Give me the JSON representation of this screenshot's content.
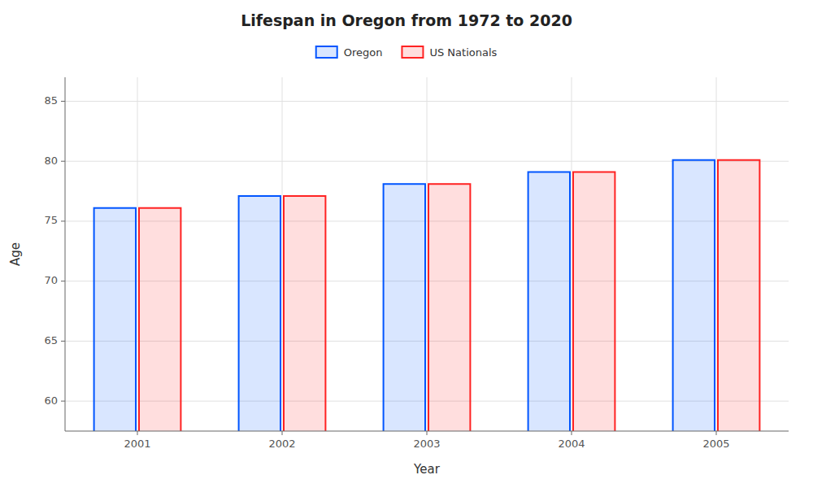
{
  "chart_data": {
    "type": "bar",
    "title": "Lifespan in Oregon from 1972 to 2020",
    "x_label": "Year",
    "y_label": "Age",
    "categories": [
      "2001",
      "2002",
      "2003",
      "2004",
      "2005"
    ],
    "series": [
      {
        "name": "Oregon",
        "color": "#0055ff",
        "values": [
          76.1,
          77.1,
          78.1,
          79.1,
          80.1
        ]
      },
      {
        "name": "US Nationals",
        "color": "#ff2222",
        "values": [
          76.1,
          77.1,
          78.1,
          79.1,
          80.1
        ]
      }
    ],
    "ylim": [
      57.5,
      87
    ],
    "yticks": [
      60,
      65,
      70,
      75,
      80,
      85
    ],
    "grid": true,
    "legend": "top"
  }
}
